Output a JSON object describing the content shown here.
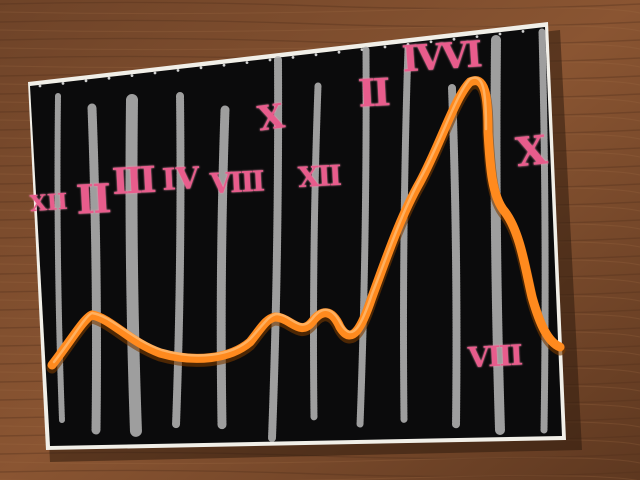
{
  "photo": {
    "subject": "",
    "labels": [
      "XII",
      "II",
      "III",
      "IV",
      "VIII",
      "XII",
      "X",
      "II",
      "IVVI",
      "X",
      "VIII"
    ],
    "colors": {
      "table": "#7a4a2a",
      "card": "#0b0b0c",
      "card_edge": "#f1efe8",
      "glitter": "#b9b9b9",
      "curve": "#ff8a1e",
      "puffy_paint": "#e85c8c"
    }
  }
}
